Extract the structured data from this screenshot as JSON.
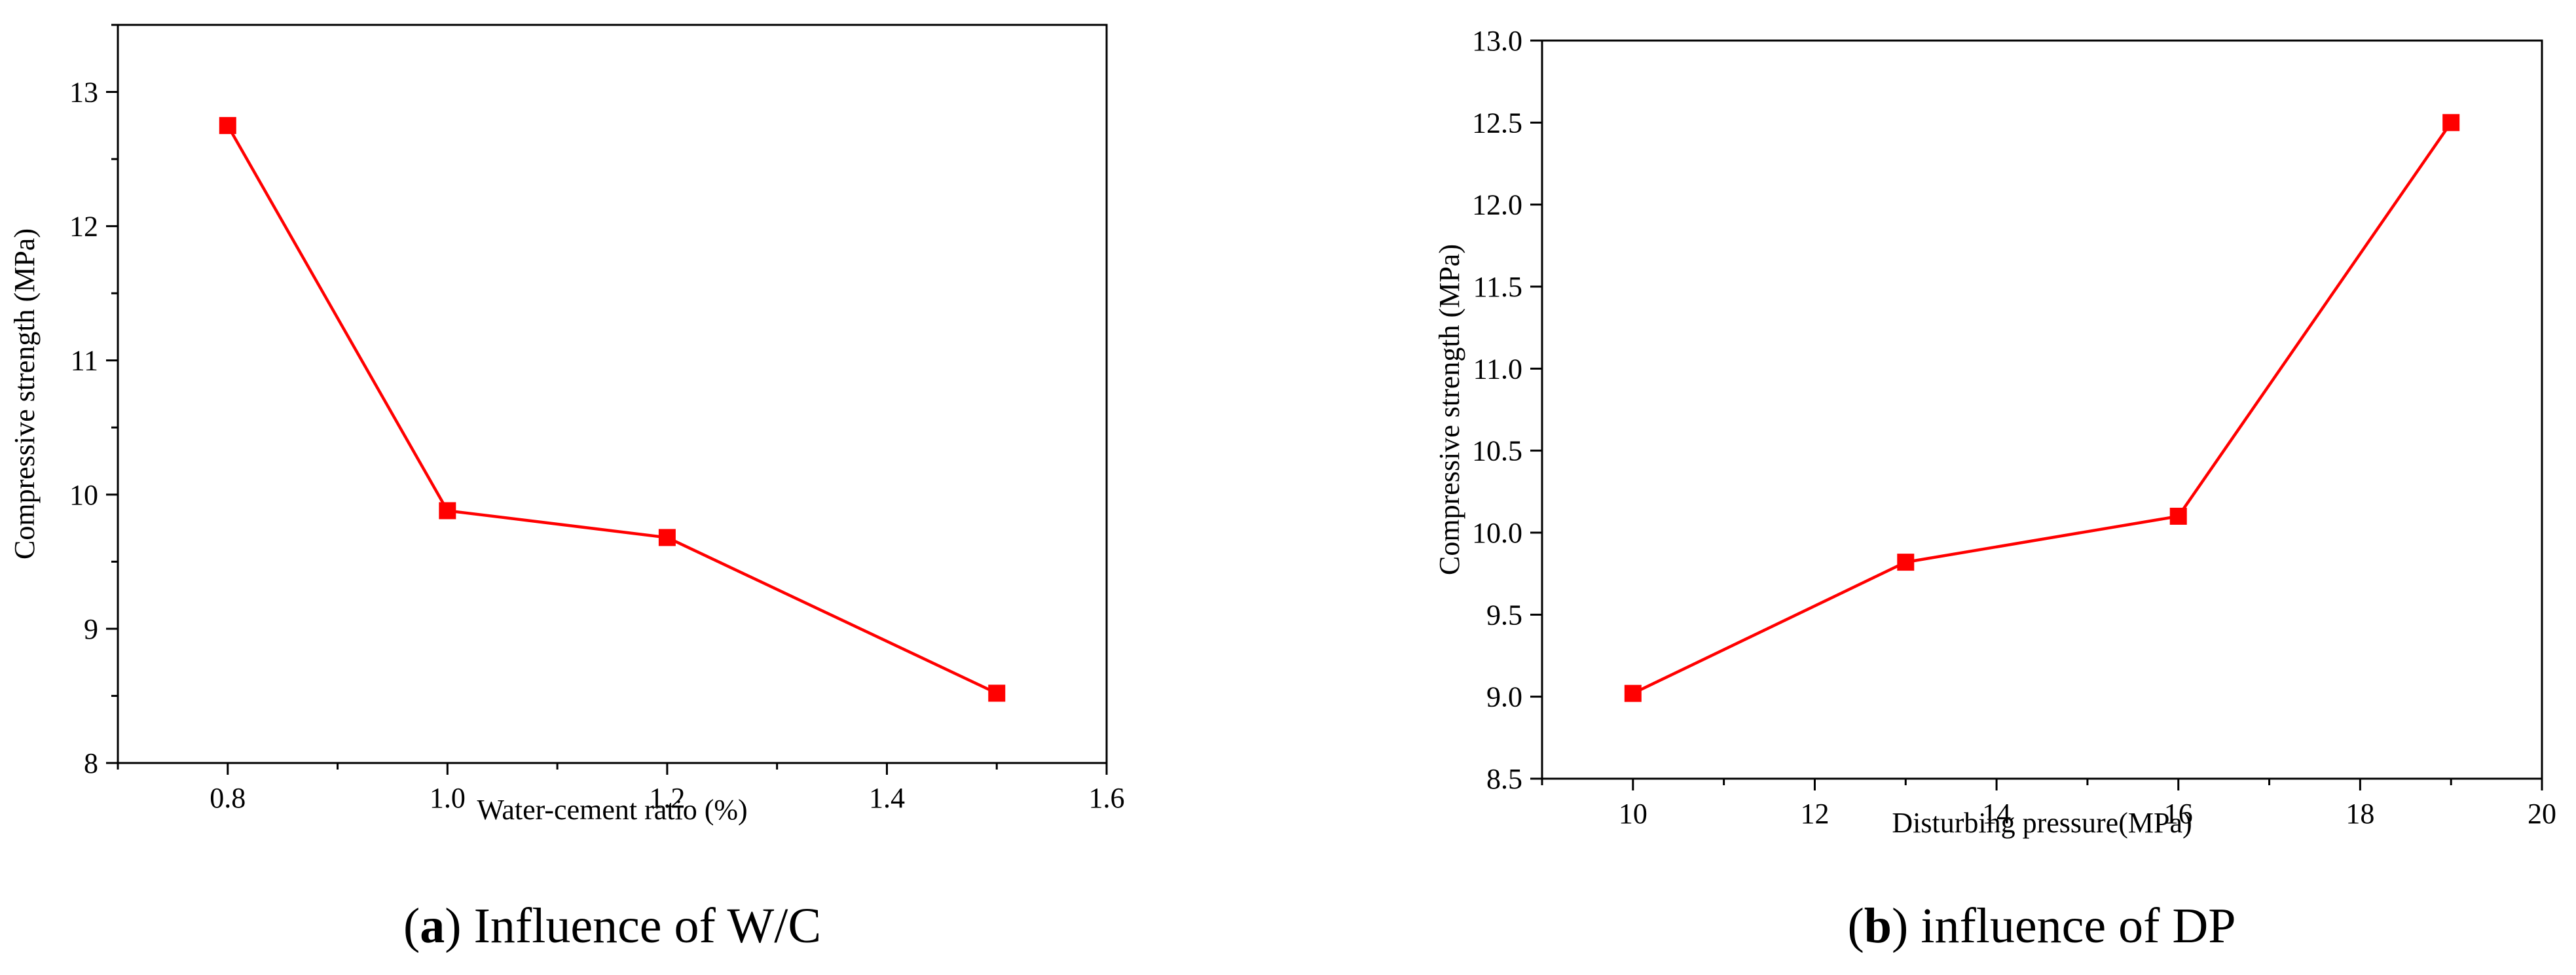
{
  "chart_data": [
    {
      "type": "line",
      "title": "",
      "xlabel": "Water-cement ratio (%)",
      "ylabel": "Compressive strength (MPa)",
      "xlim": [
        0.7,
        1.6
      ],
      "ylim": [
        8,
        13.5
      ],
      "xticks": [
        0.8,
        1.0,
        1.2,
        1.4,
        1.6
      ],
      "xtick_labels": [
        "0.8",
        "1.0",
        "1.2",
        "1.4",
        "1.6"
      ],
      "x_minor_ticks": [
        0.7,
        0.9,
        1.1,
        1.3,
        1.5
      ],
      "yticks": [
        8,
        9,
        10,
        11,
        12,
        13
      ],
      "ytick_labels": [
        "8",
        "9",
        "10",
        "11",
        "12",
        "13"
      ],
      "y_minor_ticks": [
        8.5,
        9.5,
        10.5,
        11.5,
        12.5,
        13.5
      ],
      "grid": false,
      "legend": "none",
      "series": [
        {
          "x": [
            0.8,
            1.0,
            1.2,
            1.5
          ],
          "values": [
            12.75,
            9.88,
            9.68,
            8.52
          ],
          "color": "#ff0000",
          "marker": "square"
        }
      ],
      "caption_letter": "a",
      "caption_text": " Influence of W/C"
    },
    {
      "type": "line",
      "title": "",
      "xlabel": "Disturbing pressure(MPa)",
      "ylabel": "Compressive strength (MPa)",
      "xlim": [
        9,
        20
      ],
      "ylim": [
        8.5,
        13.0
      ],
      "xticks": [
        10,
        12,
        14,
        16,
        18,
        20
      ],
      "xtick_labels": [
        "10",
        "12",
        "14",
        "16",
        "18",
        "20"
      ],
      "x_minor_ticks": [
        9,
        11,
        13,
        15,
        17,
        19
      ],
      "yticks": [
        8.5,
        9.0,
        9.5,
        10.0,
        10.5,
        11.0,
        11.5,
        12.0,
        12.5,
        13.0
      ],
      "ytick_labels": [
        "8.5",
        "9.0",
        "9.5",
        "10.0",
        "10.5",
        "11.0",
        "11.5",
        "12.0",
        "12.5",
        "13.0"
      ],
      "y_minor_ticks": [],
      "grid": false,
      "legend": "none",
      "series": [
        {
          "x": [
            10,
            13,
            16,
            19
          ],
          "values": [
            9.02,
            9.82,
            10.1,
            12.5
          ],
          "color": "#ff0000",
          "marker": "square"
        }
      ],
      "caption_letter": "b",
      "caption_text": " influence of DP"
    }
  ]
}
